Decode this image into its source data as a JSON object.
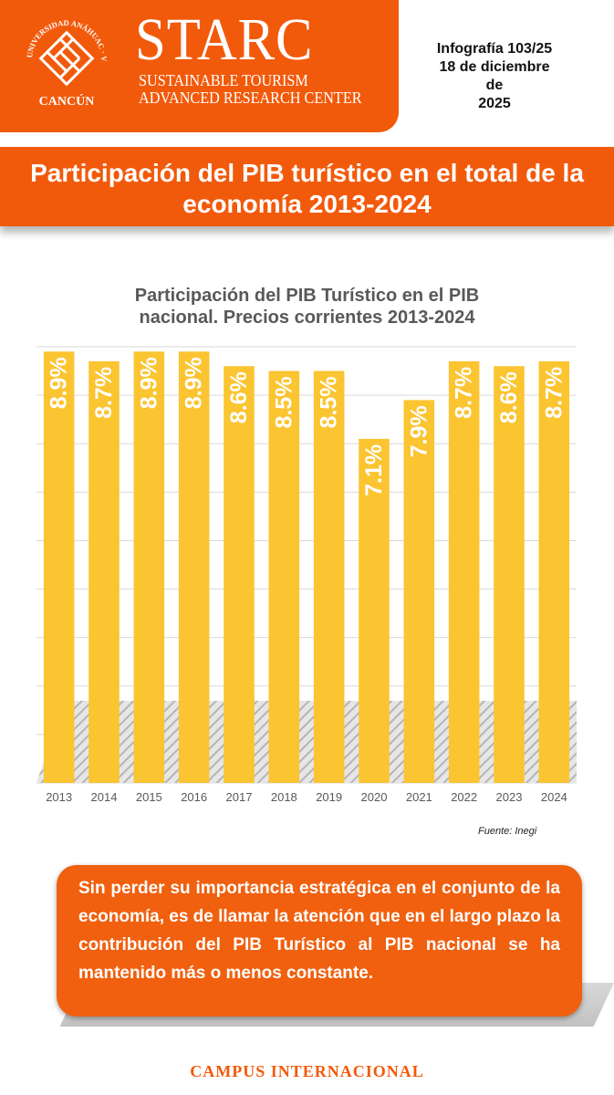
{
  "header": {
    "logo_ring_text": "UNIVERSIDAD ANÁHUAC · VINCE IN BONO MALUM",
    "logo_city": "CANCÚN",
    "brand": "STARC",
    "brand_sub_1": "SUSTAINABLE TOURISM",
    "brand_sub_2": "ADVANCED RESEARCH CENTER",
    "info_1": "Infografía 103/25",
    "info_2": "18 de diciembre de",
    "info_3": "2025",
    "accent_color": "#f25a0b"
  },
  "banner": {
    "title_1": "Participación del PIB turístico en el total de la",
    "title_2": "economía 2013-2024"
  },
  "chart_data": {
    "type": "bar",
    "title_1": "Participación del PIB Turístico en el PIB",
    "title_2": "nacional. Precios corrientes 2013-2024",
    "categories": [
      "2013",
      "2014",
      "2015",
      "2016",
      "2017",
      "2018",
      "2019",
      "2020",
      "2021",
      "2022",
      "2023",
      "2024"
    ],
    "values": [
      8.9,
      8.7,
      8.9,
      8.9,
      8.6,
      8.5,
      8.5,
      7.1,
      7.9,
      8.7,
      8.6,
      8.7
    ],
    "data_labels": [
      "8.9%",
      "8.7%",
      "8.9%",
      "8.9%",
      "8.6%",
      "8.5%",
      "8.5%",
      "7.1%",
      "7.9%",
      "8.7%",
      "8.6%",
      "8.7%"
    ],
    "ylim": [
      0,
      9
    ],
    "bar_color": "#fbc431",
    "grid": true,
    "xlabel": "",
    "ylabel": ""
  },
  "source": "Fuente: Inegi",
  "note": {
    "text": "Sin perder su importancia estratégica en el conjunto de la economía, es de llamar la atención que en el largo plazo la contribución del PIB Turístico al PIB nacional se ha mantenido más o menos constante."
  },
  "footer": {
    "campus": "CAMPUS INTERNACIONAL"
  }
}
